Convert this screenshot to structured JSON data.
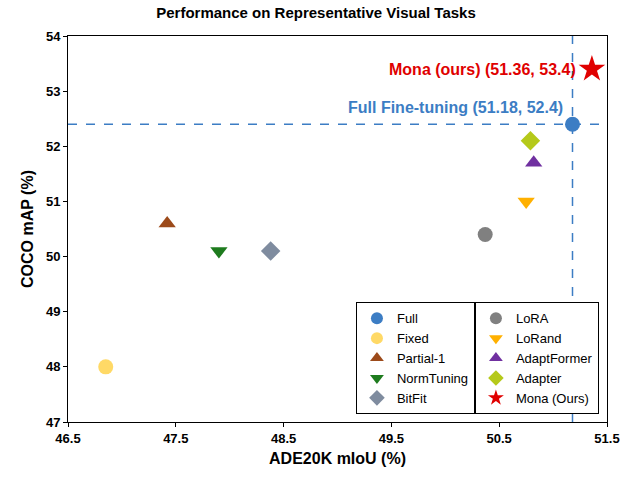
{
  "chart_data": {
    "type": "scatter",
    "title": "Performance on Representative Visual Tasks",
    "x_label": "ADE20K mIoU (%)",
    "y_label": "COCO mAP (%)",
    "xlim": [
      46.5,
      51.5
    ],
    "xticks": [
      46.5,
      47.5,
      48.5,
      49.5,
      50.5,
      51.5
    ],
    "ylim": [
      47,
      54
    ],
    "yticks": [
      47,
      48,
      49,
      50,
      51,
      52,
      53,
      54
    ],
    "grid": false,
    "legend": "lower right",
    "series": [
      {
        "name": "Full",
        "color": "#3C7DC4",
        "marker": "circle",
        "x": [
          51.18
        ],
        "values": [
          52.4
        ]
      },
      {
        "name": "Fixed",
        "color": "#FFD966",
        "marker": "circle",
        "x": [
          46.85
        ],
        "values": [
          48.0
        ]
      },
      {
        "name": "Partial-1",
        "color": "#9C4A1A",
        "marker": "triangle-up",
        "x": [
          47.42
        ],
        "values": [
          50.6
        ]
      },
      {
        "name": "NormTuning",
        "color": "#1E7B1E",
        "marker": "triangle-down",
        "x": [
          47.9
        ],
        "values": [
          50.1
        ]
      },
      {
        "name": "BitFit",
        "color": "#7F8C9F",
        "marker": "diamond",
        "x": [
          48.38
        ],
        "values": [
          50.1
        ]
      },
      {
        "name": "LoRA",
        "color": "#808080",
        "marker": "circle",
        "x": [
          50.37
        ],
        "values": [
          50.4
        ]
      },
      {
        "name": "LoRand",
        "color": "#FFB000",
        "marker": "triangle-down",
        "x": [
          50.75
        ],
        "values": [
          51.0
        ]
      },
      {
        "name": "AdaptFormer",
        "color": "#7030A0",
        "marker": "triangle-up",
        "x": [
          50.82
        ],
        "values": [
          51.7
        ]
      },
      {
        "name": "Adapter",
        "color": "#B5C91A",
        "marker": "diamond",
        "x": [
          50.79
        ],
        "values": [
          52.1
        ]
      },
      {
        "name": "Mona (Ours)",
        "color": "#E00000",
        "marker": "star",
        "x": [
          51.36
        ],
        "values": [
          53.4
        ]
      }
    ],
    "annotations": [
      {
        "text": "Mona (ours) (51.36, 53.4)",
        "color": "#E00000"
      },
      {
        "text": "Full Fine-tuning (51.18, 52.4)",
        "color": "#3C7DC4"
      }
    ]
  }
}
